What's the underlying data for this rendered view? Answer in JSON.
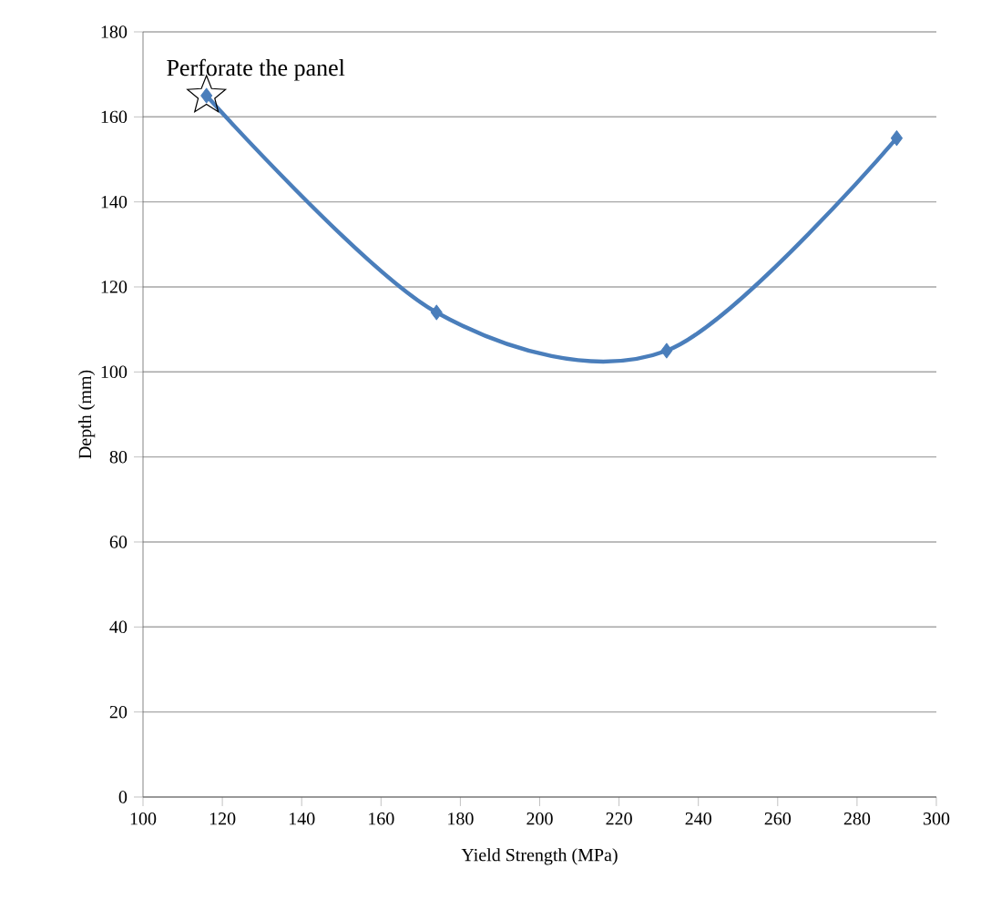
{
  "chart_data": {
    "type": "line",
    "xlabel": "Yield Strength (MPa)",
    "ylabel": "Depth (mm)",
    "x": [
      116,
      174,
      232,
      290
    ],
    "series": [
      {
        "color": "#4a7ebb",
        "values": [
          165,
          114,
          105,
          155
        ]
      }
    ],
    "xlim": [
      100,
      300
    ],
    "xticks": [
      100,
      120,
      140,
      160,
      180,
      200,
      220,
      240,
      260,
      280,
      300
    ],
    "ylim": [
      0,
      180
    ],
    "yticks": [
      0,
      20,
      40,
      60,
      80,
      100,
      120,
      140,
      160,
      180
    ],
    "grid": "y",
    "marker": "diamond",
    "line_style": "solid",
    "annotations": [
      {
        "text": "Perforate the panel",
        "x": 116,
        "y": 165
      }
    ]
  }
}
